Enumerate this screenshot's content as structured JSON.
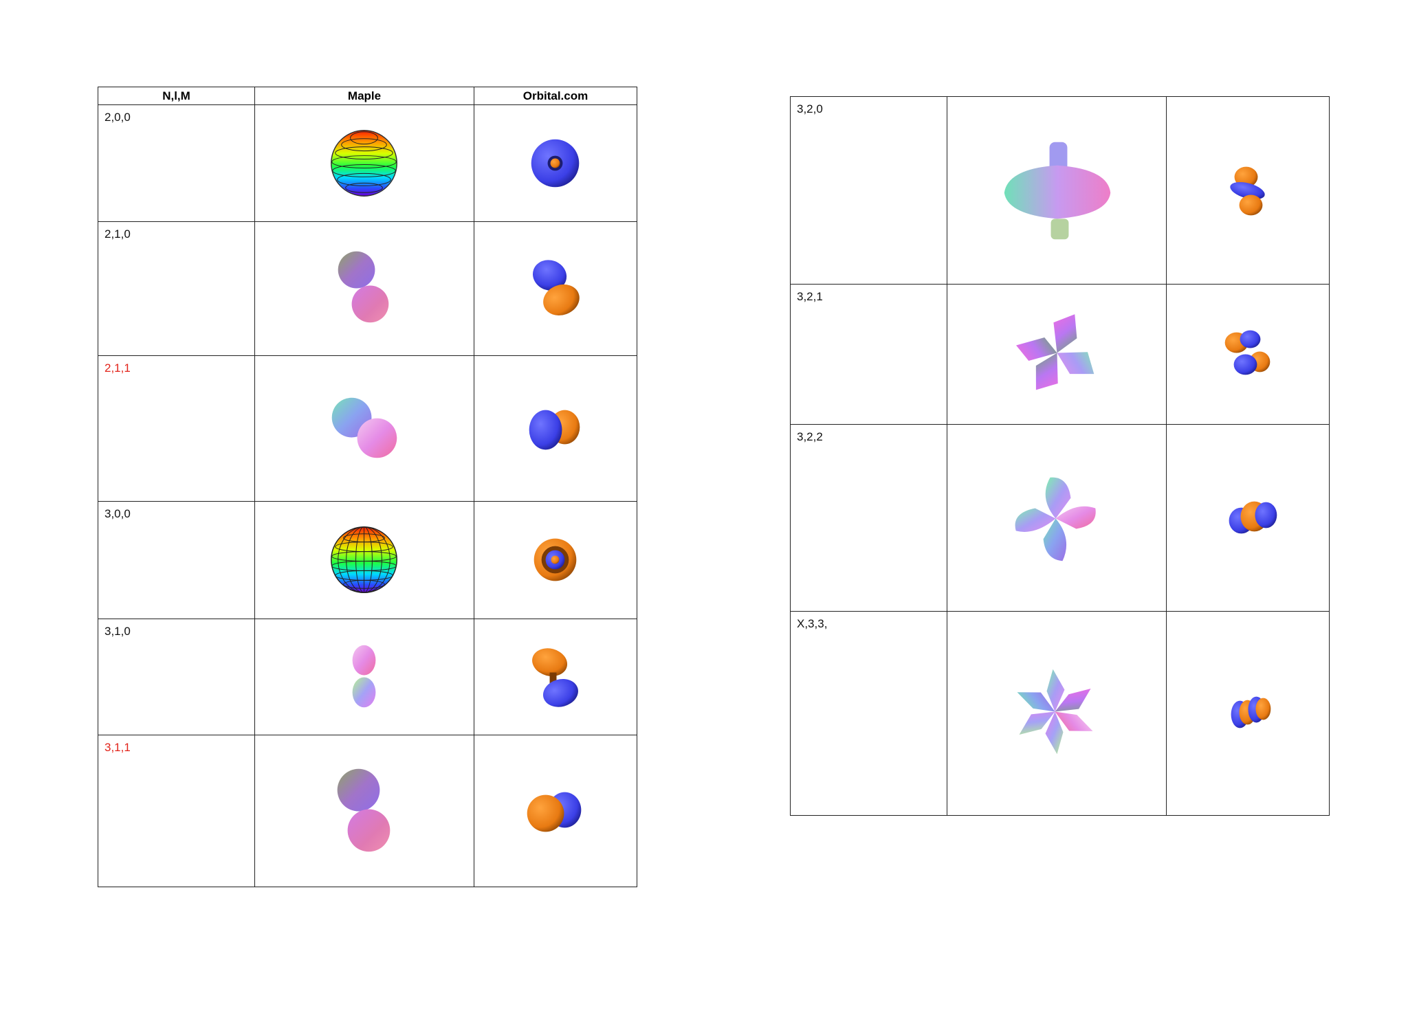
{
  "table_left": {
    "headers": [
      "N,l,M",
      "Maple",
      "Orbital.com"
    ],
    "rows": [
      {
        "label": "2,0,0",
        "label_color": "#111111",
        "maple_icon": "rainbow-contour-sphere-icon",
        "orbital_icon": "blue-s-orbital-icon"
      },
      {
        "label": "2,1,0",
        "label_color": "#111111",
        "maple_icon": "two-lobe-vertical-icon",
        "orbital_icon": "blue-orange-p-orbital-icon"
      },
      {
        "label": "2,1,1",
        "label_color": "#e2231a",
        "maple_icon": "two-lobe-diagonal-icon",
        "orbital_icon": "blue-orange-p-orbital-side-icon"
      },
      {
        "label": "3,0,0",
        "label_color": "#111111",
        "maple_icon": "rainbow-grid-sphere-icon",
        "orbital_icon": "orange-s-orbital-icon"
      },
      {
        "label": "3,1,0",
        "label_color": "#111111",
        "maple_icon": "small-two-lobe-icon",
        "orbital_icon": "orange-blue-p-orbital-icon"
      },
      {
        "label": "3,1,1",
        "label_color": "#e2231a",
        "maple_icon": "two-lobe-large-icon",
        "orbital_icon": "orange-blue-p-orbital-side-icon"
      }
    ]
  },
  "table_right": {
    "rows": [
      {
        "label": "3,2,0",
        "label_color": "#111111",
        "maple_icon": "dz2-torus-icon",
        "orbital_icon": "dz2-orbital-icon"
      },
      {
        "label": "3,2,1",
        "label_color": "#111111",
        "maple_icon": "four-petal-icon",
        "orbital_icon": "d-orbital-clover-icon"
      },
      {
        "label": "3,2,2",
        "label_color": "#111111",
        "maple_icon": "four-petal-rotated-icon",
        "orbital_icon": "d-orbital-clover-alt-icon"
      },
      {
        "label": "X,3,3,",
        "label_color": "#111111",
        "maple_icon": "six-petal-icon",
        "orbital_icon": "f-orbital-icon"
      }
    ]
  }
}
